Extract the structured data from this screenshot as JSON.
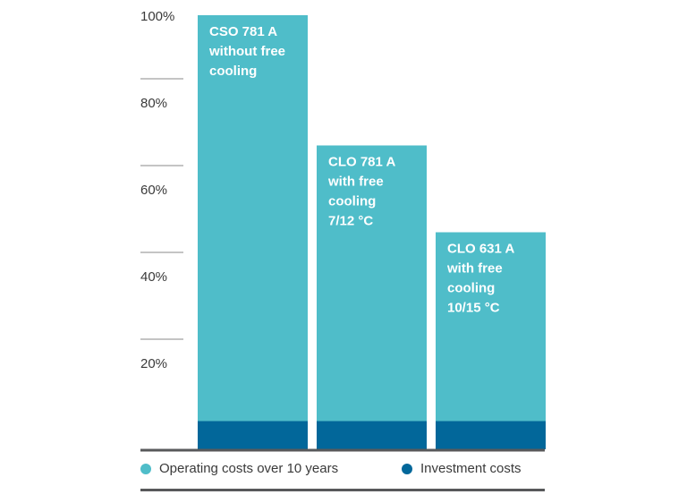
{
  "chart_data": {
    "type": "bar",
    "stacked": true,
    "categories": [
      [
        "CSO 781 A",
        "without free",
        "cooling"
      ],
      [
        "CLO 781 A",
        "with free",
        "cooling",
        "7/12 °C"
      ],
      [
        "CLO 631 A",
        "with free",
        "cooling",
        "10/15 °C"
      ]
    ],
    "series": [
      {
        "name": "Investment costs",
        "values": [
          6.5,
          6.5,
          6.5
        ]
      },
      {
        "name": "Operating costs over 10 years",
        "values": [
          93.5,
          63.5,
          43.5
        ]
      }
    ],
    "y_ticks": [
      "20%",
      "40%",
      "60%",
      "80%",
      "100%"
    ],
    "y_tick_values": [
      20,
      40,
      60,
      80,
      100
    ],
    "ylim": [
      0,
      100
    ],
    "grid": false,
    "legend_position": "bottom",
    "colors": {
      "operating": "#4fbdc9",
      "investment": "#02679a",
      "axis": "#58595b",
      "tick_line": "#8a8a8a"
    }
  },
  "legend": {
    "operating_label": "Operating costs over 10 years",
    "investment_label": "Investment costs"
  }
}
